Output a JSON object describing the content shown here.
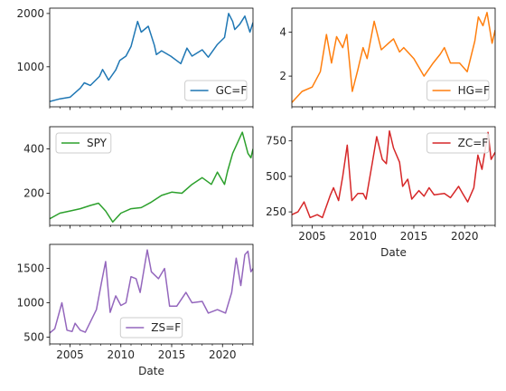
{
  "chart_data": [
    {
      "type": "line",
      "series": [
        {
          "name": "GC=F",
          "color": "#1f77b4"
        }
      ],
      "xlim": [
        2003.0,
        2023.0
      ],
      "ylim": [
        250,
        2100
      ],
      "yticks": [
        1000,
        2000
      ],
      "xticks": [
        2005,
        2010,
        2015,
        2020
      ],
      "xtick_labels_visible": false,
      "legend_position": "lower-right",
      "xlabel": "",
      "points": [
        [
          2003.0,
          350
        ],
        [
          2004.0,
          400
        ],
        [
          2005.0,
          430
        ],
        [
          2006.0,
          600
        ],
        [
          2006.4,
          700
        ],
        [
          2007.0,
          650
        ],
        [
          2007.9,
          820
        ],
        [
          2008.2,
          950
        ],
        [
          2008.8,
          750
        ],
        [
          2009.5,
          940
        ],
        [
          2009.9,
          1120
        ],
        [
          2010.5,
          1200
        ],
        [
          2011.0,
          1380
        ],
        [
          2011.65,
          1850
        ],
        [
          2012.0,
          1650
        ],
        [
          2012.7,
          1760
        ],
        [
          2013.3,
          1400
        ],
        [
          2013.5,
          1230
        ],
        [
          2014.0,
          1300
        ],
        [
          2014.9,
          1200
        ],
        [
          2015.9,
          1060
        ],
        [
          2016.5,
          1350
        ],
        [
          2017.0,
          1200
        ],
        [
          2018.0,
          1320
        ],
        [
          2018.6,
          1180
        ],
        [
          2019.5,
          1420
        ],
        [
          2020.2,
          1550
        ],
        [
          2020.6,
          2000
        ],
        [
          2021.0,
          1850
        ],
        [
          2021.2,
          1700
        ],
        [
          2021.7,
          1800
        ],
        [
          2022.2,
          1950
        ],
        [
          2022.7,
          1650
        ],
        [
          2023.0,
          1830
        ]
      ]
    },
    {
      "type": "line",
      "series": [
        {
          "name": "HG=F",
          "color": "#ff7f0e"
        }
      ],
      "xlim": [
        2003.0,
        2023.0
      ],
      "ylim": [
        0.6,
        5.1
      ],
      "yticks": [
        2,
        4
      ],
      "xticks": [
        2005,
        2010,
        2015,
        2020
      ],
      "xtick_labels_visible": false,
      "legend_position": "lower-right",
      "xlabel": "",
      "points": [
        [
          2003.0,
          0.8
        ],
        [
          2004.0,
          1.3
        ],
        [
          2005.0,
          1.5
        ],
        [
          2005.8,
          2.2
        ],
        [
          2006.4,
          3.9
        ],
        [
          2006.9,
          2.6
        ],
        [
          2007.4,
          3.8
        ],
        [
          2008.0,
          3.3
        ],
        [
          2008.4,
          3.9
        ],
        [
          2008.95,
          1.3
        ],
        [
          2009.5,
          2.3
        ],
        [
          2010.0,
          3.3
        ],
        [
          2010.4,
          2.8
        ],
        [
          2011.1,
          4.5
        ],
        [
          2011.8,
          3.2
        ],
        [
          2012.5,
          3.5
        ],
        [
          2013.0,
          3.7
        ],
        [
          2013.6,
          3.1
        ],
        [
          2014.0,
          3.3
        ],
        [
          2015.0,
          2.8
        ],
        [
          2016.0,
          2.0
        ],
        [
          2016.9,
          2.6
        ],
        [
          2017.6,
          3.0
        ],
        [
          2018.0,
          3.3
        ],
        [
          2018.6,
          2.6
        ],
        [
          2019.5,
          2.6
        ],
        [
          2020.25,
          2.2
        ],
        [
          2021.0,
          3.6
        ],
        [
          2021.35,
          4.7
        ],
        [
          2021.8,
          4.3
        ],
        [
          2022.2,
          4.9
        ],
        [
          2022.7,
          3.5
        ],
        [
          2023.0,
          4.1
        ]
      ]
    },
    {
      "type": "line",
      "series": [
        {
          "name": "SPY",
          "color": "#2ca02c"
        }
      ],
      "xlim": [
        2003.0,
        2023.0
      ],
      "ylim": [
        55,
        500
      ],
      "yticks": [
        200,
        400
      ],
      "xticks": [
        2005,
        2010,
        2015,
        2020
      ],
      "xtick_labels_visible": false,
      "legend_position": "upper-left",
      "xlabel": "",
      "points": [
        [
          2003.0,
          85
        ],
        [
          2004.0,
          110
        ],
        [
          2005.0,
          120
        ],
        [
          2006.0,
          130
        ],
        [
          2007.0,
          145
        ],
        [
          2007.8,
          155
        ],
        [
          2008.5,
          120
        ],
        [
          2009.2,
          70
        ],
        [
          2010.0,
          110
        ],
        [
          2011.0,
          130
        ],
        [
          2012.0,
          135
        ],
        [
          2013.0,
          160
        ],
        [
          2014.0,
          190
        ],
        [
          2015.0,
          205
        ],
        [
          2016.0,
          200
        ],
        [
          2017.0,
          240
        ],
        [
          2018.0,
          270
        ],
        [
          2018.9,
          240
        ],
        [
          2019.5,
          295
        ],
        [
          2020.2,
          240
        ],
        [
          2020.5,
          300
        ],
        [
          2021.0,
          380
        ],
        [
          2021.95,
          475
        ],
        [
          2022.5,
          380
        ],
        [
          2022.8,
          360
        ],
        [
          2023.0,
          400
        ]
      ]
    },
    {
      "type": "line",
      "series": [
        {
          "name": "ZC=F",
          "color": "#d62728"
        }
      ],
      "xlim": [
        2003.0,
        2023.0
      ],
      "ylim": [
        155,
        850
      ],
      "yticks": [
        250,
        500,
        750
      ],
      "xticks": [
        2005,
        2010,
        2015,
        2020
      ],
      "xtick_labels": [
        "2005",
        "2010",
        "2015",
        "2020"
      ],
      "xtick_labels_visible": true,
      "xlabel": "Date",
      "legend_position": "upper-right",
      "points": [
        [
          2003.0,
          230
        ],
        [
          2003.6,
          250
        ],
        [
          2004.2,
          320
        ],
        [
          2004.8,
          210
        ],
        [
          2005.5,
          230
        ],
        [
          2006.0,
          210
        ],
        [
          2006.8,
          370
        ],
        [
          2007.1,
          420
        ],
        [
          2007.6,
          330
        ],
        [
          2008.0,
          500
        ],
        [
          2008.45,
          720
        ],
        [
          2008.9,
          330
        ],
        [
          2009.5,
          380
        ],
        [
          2010.0,
          380
        ],
        [
          2010.3,
          340
        ],
        [
          2010.9,
          590
        ],
        [
          2011.35,
          780
        ],
        [
          2011.9,
          620
        ],
        [
          2012.3,
          590
        ],
        [
          2012.6,
          820
        ],
        [
          2013.0,
          700
        ],
        [
          2013.6,
          600
        ],
        [
          2013.9,
          430
        ],
        [
          2014.4,
          480
        ],
        [
          2014.8,
          340
        ],
        [
          2015.5,
          400
        ],
        [
          2016.0,
          360
        ],
        [
          2016.5,
          420
        ],
        [
          2017.0,
          370
        ],
        [
          2018.0,
          380
        ],
        [
          2018.6,
          350
        ],
        [
          2019.4,
          430
        ],
        [
          2019.8,
          380
        ],
        [
          2020.3,
          320
        ],
        [
          2020.9,
          420
        ],
        [
          2021.3,
          650
        ],
        [
          2021.7,
          550
        ],
        [
          2022.3,
          810
        ],
        [
          2022.6,
          620
        ],
        [
          2023.0,
          670
        ]
      ]
    },
    {
      "type": "line",
      "series": [
        {
          "name": "ZS=F",
          "color": "#9467bd"
        }
      ],
      "xlim": [
        2003.0,
        2023.0
      ],
      "ylim": [
        400,
        1850
      ],
      "yticks": [
        500,
        1000,
        1500
      ],
      "xticks": [
        2005,
        2010,
        2015,
        2020
      ],
      "xtick_labels": [
        "2005",
        "2010",
        "2015",
        "2020"
      ],
      "xtick_labels_visible": true,
      "xlabel": "Date",
      "legend_position": "lower-center",
      "points": [
        [
          2003.0,
          560
        ],
        [
          2003.5,
          620
        ],
        [
          2004.2,
          1000
        ],
        [
          2004.7,
          600
        ],
        [
          2005.2,
          580
        ],
        [
          2005.5,
          700
        ],
        [
          2006.0,
          600
        ],
        [
          2006.5,
          570
        ],
        [
          2007.0,
          720
        ],
        [
          2007.6,
          900
        ],
        [
          2008.1,
          1300
        ],
        [
          2008.5,
          1600
        ],
        [
          2008.95,
          860
        ],
        [
          2009.5,
          1100
        ],
        [
          2010.0,
          960
        ],
        [
          2010.5,
          1000
        ],
        [
          2011.0,
          1380
        ],
        [
          2011.5,
          1350
        ],
        [
          2011.9,
          1150
        ],
        [
          2012.6,
          1770
        ],
        [
          2013.0,
          1450
        ],
        [
          2013.7,
          1350
        ],
        [
          2014.3,
          1500
        ],
        [
          2014.8,
          950
        ],
        [
          2015.5,
          950
        ],
        [
          2016.4,
          1150
        ],
        [
          2017.0,
          1000
        ],
        [
          2018.0,
          1020
        ],
        [
          2018.6,
          850
        ],
        [
          2019.5,
          900
        ],
        [
          2020.3,
          850
        ],
        [
          2020.9,
          1150
        ],
        [
          2021.35,
          1650
        ],
        [
          2021.8,
          1250
        ],
        [
          2022.2,
          1700
        ],
        [
          2022.5,
          1750
        ],
        [
          2022.8,
          1450
        ],
        [
          2023.0,
          1500
        ]
      ]
    }
  ]
}
